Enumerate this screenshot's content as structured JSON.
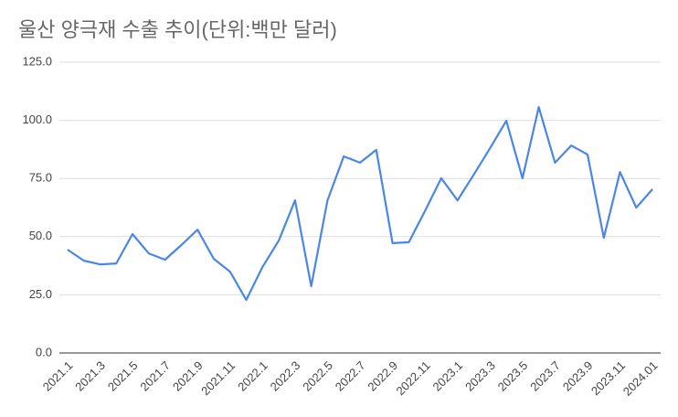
{
  "chart_data": {
    "type": "line",
    "title": "울산 양극재 수출 추이(단위:백만 달러)",
    "categories": [
      "2021.1",
      null,
      "2021.3",
      null,
      "2021.5",
      null,
      "2021.7",
      null,
      "2021.9",
      null,
      "2021.11",
      null,
      "2022.1",
      null,
      "2022.3",
      null,
      "2022.5",
      null,
      "2022.7",
      null,
      "2022.9",
      null,
      "2022.11",
      null,
      "2023.1",
      null,
      "2023.3",
      null,
      "2023.5",
      null,
      "2023.7",
      null,
      "2023.9",
      null,
      "2023.11",
      null,
      "2024.01"
    ],
    "series": [
      {
        "name": "수출",
        "color": "#4a86e8",
        "values": [
          44.4,
          39.7,
          38.1,
          38.5,
          51.1,
          42.8,
          40.1,
          46.4,
          53,
          40.5,
          35,
          22.8,
          37,
          48.3,
          65.6,
          28.7,
          65.6,
          84.5,
          81.8,
          87.3,
          47.2,
          47.6,
          61,
          75.1,
          65.6,
          76.7,
          88,
          99.8,
          75.1,
          105.7,
          81.8,
          89.2,
          85.3,
          49.5,
          77.8,
          62.5,
          70.4
        ]
      }
    ],
    "ylim": [
      0,
      125
    ],
    "yticks": [
      {
        "value": 0,
        "label": "0.0"
      },
      {
        "value": 25,
        "label": "25.0"
      },
      {
        "value": 50,
        "label": "50.0"
      },
      {
        "value": 75,
        "label": "75.0"
      },
      {
        "value": 100,
        "label": "100.0"
      },
      {
        "value": 125,
        "label": "125.0"
      }
    ],
    "grid": true
  }
}
